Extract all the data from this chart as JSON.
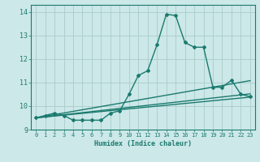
{
  "title": "",
  "xlabel": "Humidex (Indice chaleur)",
  "ylabel": "",
  "bg_color": "#cce8e8",
  "grid_color": "#aacccc",
  "line_color": "#1a7a6e",
  "xlim": [
    -0.5,
    23.5
  ],
  "ylim": [
    9.0,
    14.3
  ],
  "yticks": [
    9,
    10,
    11,
    12,
    13,
    14
  ],
  "xticks": [
    0,
    1,
    2,
    3,
    4,
    5,
    6,
    7,
    8,
    9,
    10,
    11,
    12,
    13,
    14,
    15,
    16,
    17,
    18,
    19,
    20,
    21,
    22,
    23
  ],
  "series": [
    {
      "x": [
        0,
        1,
        2,
        3,
        4,
        5,
        6,
        7,
        8,
        9,
        10,
        11,
        12,
        13,
        14,
        15,
        16,
        17,
        18,
        19,
        20,
        21,
        22,
        23
      ],
      "y": [
        9.5,
        9.6,
        9.7,
        9.6,
        9.4,
        9.4,
        9.4,
        9.4,
        9.7,
        9.8,
        10.5,
        11.3,
        11.5,
        12.6,
        13.9,
        13.85,
        12.7,
        12.5,
        12.5,
        10.8,
        10.8,
        11.1,
        10.5,
        10.4
      ],
      "marker": "D",
      "markersize": 2.0,
      "lw": 1.0
    },
    {
      "x": [
        0,
        23
      ],
      "y": [
        9.5,
        10.38
      ],
      "marker": null,
      "lw": 1.0
    },
    {
      "x": [
        0,
        23
      ],
      "y": [
        9.5,
        10.52
      ],
      "marker": null,
      "lw": 1.0
    },
    {
      "x": [
        0,
        23
      ],
      "y": [
        9.5,
        11.08
      ],
      "marker": null,
      "lw": 1.0
    }
  ]
}
